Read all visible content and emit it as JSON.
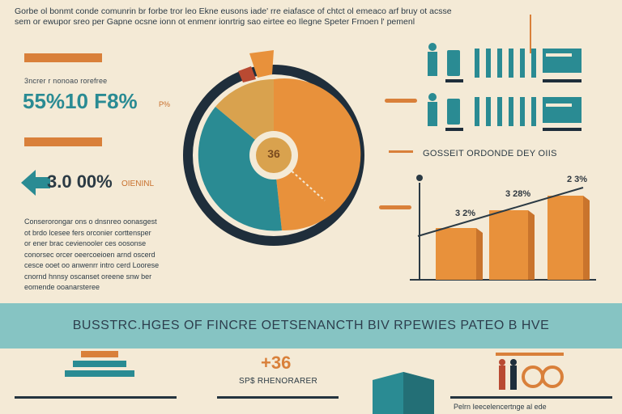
{
  "intro": {
    "line1": "Gorbe ol bonmt conde comunrin br forbe tror leo Ekne eusons iade' rre eiafasce of chtct ol emeaco arf bruy ot acsse",
    "line2": "sem or ewupor sreo per Gapne ocsne ionn ot enmenr ionrtrig sao eirtee eo Ilegne Speter Frnoen l' pemenl"
  },
  "stat1": {
    "caption": "3ncrer r nonoao rorefree",
    "value": "55%10 F8%",
    "suffix": "P%"
  },
  "stat2": {
    "value": "3.0 00%",
    "label": "OIENINL"
  },
  "body_lines": [
    "Conserorongar ons o dnsnreo oonasgest",
    "ot brdo lcesee fers orconier corttensper",
    "or ener brac cevienooler ces oosonse",
    "conorsec orcer oeercoeioen arnd oscerd",
    "cesce ooet oo anwenrr intro cerd Loorese",
    "cnornd hnnsy oscanset oreene snw ber",
    "eomende ooanarsteree"
  ],
  "donut": {
    "center_label": "36"
  },
  "icon_row_caption": "GOSSEIT ORDONDE DEY OIIS",
  "bar_chart": {
    "label_left": "3 2%",
    "label_right": "2 3%",
    "label_mid": "3 28%"
  },
  "banner": {
    "title": "BUSSTRC.HGES OF FINCRE OETSENANCTH BIV RPEWIES PATEO B HVE"
  },
  "bottom": {
    "stat": "+36",
    "stat_label": "SP$ RHENORARER",
    "caption_right": "Pelrn Ieecelencertnge al ede"
  },
  "colors": {
    "background": "#f4ead6",
    "teal": "#2a8b93",
    "orange": "#e8913b",
    "navy": "#1f2e3b",
    "banner": "#86c4c3"
  }
}
